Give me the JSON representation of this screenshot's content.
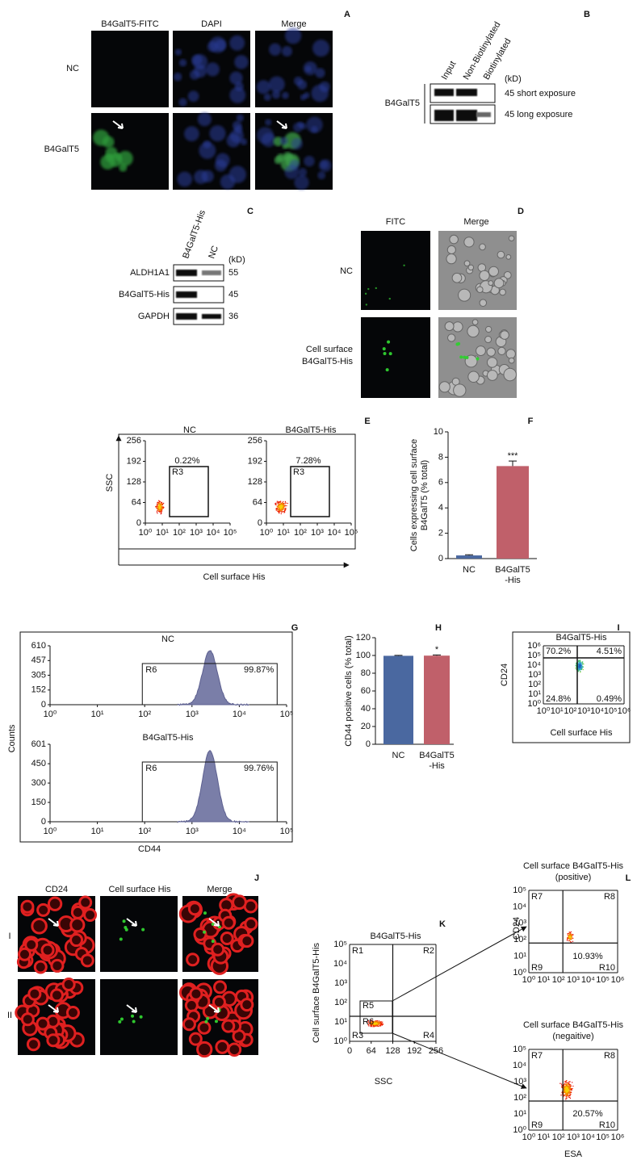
{
  "panel_A": {
    "letter": "A",
    "columns": [
      "B4GalT5-FITC",
      "DAPI",
      "Merge"
    ],
    "rows": [
      "NC",
      "B4GalT5"
    ]
  },
  "panel_B": {
    "letter": "B",
    "lanes": [
      "Input",
      "Non-Biotinylated",
      "Biotinylated"
    ],
    "unit": "(kD)",
    "protein": "B4GalT5",
    "bands": [
      "45 short exposure",
      "45 long exposure"
    ]
  },
  "panel_C": {
    "letter": "C",
    "lanes": [
      "B4GalT5-His",
      "NC"
    ],
    "unit": "(kD)",
    "rows": [
      {
        "protein": "ALDH1A1",
        "kd": "55"
      },
      {
        "protein": "B4GalT5-His",
        "kd": "45"
      },
      {
        "protein": "GAPDH",
        "kd": "36"
      }
    ]
  },
  "panel_D": {
    "letter": "D",
    "columns": [
      "FITC",
      "Merge"
    ],
    "rows": [
      [
        "NC"
      ],
      [
        "Cell surface",
        "B4GalT5-His"
      ]
    ]
  },
  "panel_E": {
    "letter": "E",
    "ylabel": "SSC",
    "xlabel": "Cell surface His",
    "yticks": [
      0,
      64,
      128,
      192,
      256
    ],
    "ylim": [
      0,
      256
    ],
    "xtick_labels": [
      "10⁰",
      "10¹",
      "10²",
      "10³",
      "10⁴",
      "10⁵"
    ],
    "plots": [
      {
        "title": "NC",
        "gate": "R3",
        "percent": "0.22%"
      },
      {
        "title": "B4GalT5-His",
        "gate": "R3",
        "percent": "7.28%"
      }
    ]
  },
  "panel_F": {
    "letter": "F",
    "ylabel": [
      "Cells expressing cell surface",
      "B4GalT5 (% total)"
    ],
    "categories": [
      [
        "NC"
      ],
      [
        "B4GalT5",
        "-His"
      ]
    ],
    "values": [
      0.25,
      7.3
    ],
    "errors": [
      0.05,
      0.4
    ],
    "colors": [
      "#4a68a0",
      "#c0606a"
    ],
    "ylim": [
      0,
      10
    ],
    "yticks": [
      0,
      2,
      4,
      6,
      8,
      10
    ],
    "annotation": "***"
  },
  "panel_G": {
    "letter": "G",
    "ylabel": "Counts",
    "xlabel": "CD44",
    "xtick_labels": [
      "10⁰",
      "10¹",
      "10²",
      "10³",
      "10⁴",
      "10⁵"
    ],
    "plots": [
      {
        "title": "NC",
        "gate": "R6",
        "percent": "99.87%",
        "ylim": [
          0,
          610
        ],
        "yticks": [
          0,
          152,
          305,
          457,
          610
        ]
      },
      {
        "title": "B4GalT5-His",
        "gate": "R6",
        "percent": "99.76%",
        "ylim": [
          0,
          601
        ],
        "yticks": [
          0,
          150,
          300,
          450,
          601
        ]
      }
    ]
  },
  "panel_H": {
    "letter": "H",
    "ylabel": "CD44 positive cells (% total)",
    "categories": [
      [
        "NC"
      ],
      [
        "B4GalT5",
        "-His"
      ]
    ],
    "values": [
      99.6,
      99.8
    ],
    "errors": [
      0.5,
      0.8
    ],
    "colors": [
      "#4a68a0",
      "#c0606a"
    ],
    "ylim": [
      0,
      120
    ],
    "yticks": [
      0,
      20,
      40,
      60,
      80,
      100,
      120
    ],
    "annotation": "*"
  },
  "panel_I": {
    "letter": "I",
    "title": "B4GalT5-His",
    "ylabel": "CD24",
    "xlabel": "Cell surface His",
    "ytick_labels": [
      "10⁰",
      "10¹",
      "10²",
      "10³",
      "10⁴",
      "10⁵",
      "10⁶"
    ],
    "xtick_labels": [
      "10⁰",
      "10¹",
      "10²",
      "10³",
      "10⁴",
      "10⁵",
      "10⁶"
    ],
    "quadrants": [
      "70.2%",
      "4.51%",
      "24.8%",
      "0.49%"
    ]
  },
  "panel_J": {
    "letter": "J",
    "columns": [
      "CD24",
      "Cell surface His",
      "Merge"
    ],
    "rows": [
      "I",
      "II"
    ]
  },
  "panel_K": {
    "letter": "K",
    "title": "B4GalT5-His",
    "ylabel": "Cell surface B4GalT5-His",
    "xlabel": "SSC",
    "ytick_labels": [
      "10⁰",
      "10¹",
      "10²",
      "10³",
      "10⁴",
      "10⁵"
    ],
    "xticks": [
      0,
      64,
      128,
      192,
      256
    ],
    "xlim": [
      0,
      256
    ],
    "regions": [
      "R1",
      "R2",
      "R3",
      "R4",
      "R5",
      "R6"
    ]
  },
  "panel_L": {
    "letter": "L",
    "ylabel": "CD24",
    "xlabel": "ESA",
    "ytick_labels": [
      "10⁰",
      "10¹",
      "10²",
      "10³",
      "10⁴",
      "10⁵"
    ],
    "xtick_labels": [
      "10⁰",
      "10¹",
      "10²",
      "10³",
      "10⁴",
      "10⁵",
      "10⁶"
    ],
    "plots": [
      {
        "title": [
          "Cell surface B4GalT5-His",
          "(positive)"
        ],
        "percent": "10.93%",
        "regions": [
          "R7",
          "R8",
          "R9",
          "R10"
        ]
      },
      {
        "title": [
          "Cell surface B4GalT5-His",
          "(negaitive)"
        ],
        "percent": "20.57%",
        "regions": [
          "R7",
          "R8",
          "R9",
          "R10"
        ]
      }
    ]
  }
}
